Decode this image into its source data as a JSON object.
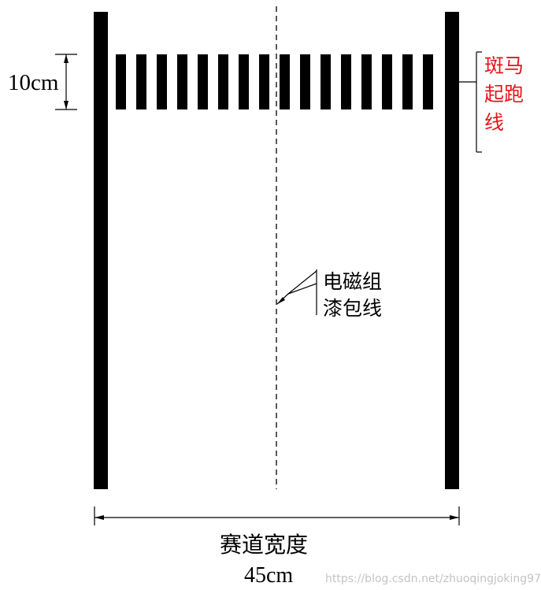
{
  "diagram": {
    "stripe_count": 16,
    "colors": {
      "ink": "#000000",
      "annotation_red": "#e8141a",
      "watermark": "#c4c4c4"
    },
    "labels": {
      "stripe_height": "10cm",
      "zebra_line": "斑马起跑线",
      "em_wire": "电磁组漆包线",
      "track_width_title": "赛道宽度",
      "track_width_value": "45cm",
      "watermark": "https://blog.csdn.net/zhuoqingjoking97"
    }
  }
}
